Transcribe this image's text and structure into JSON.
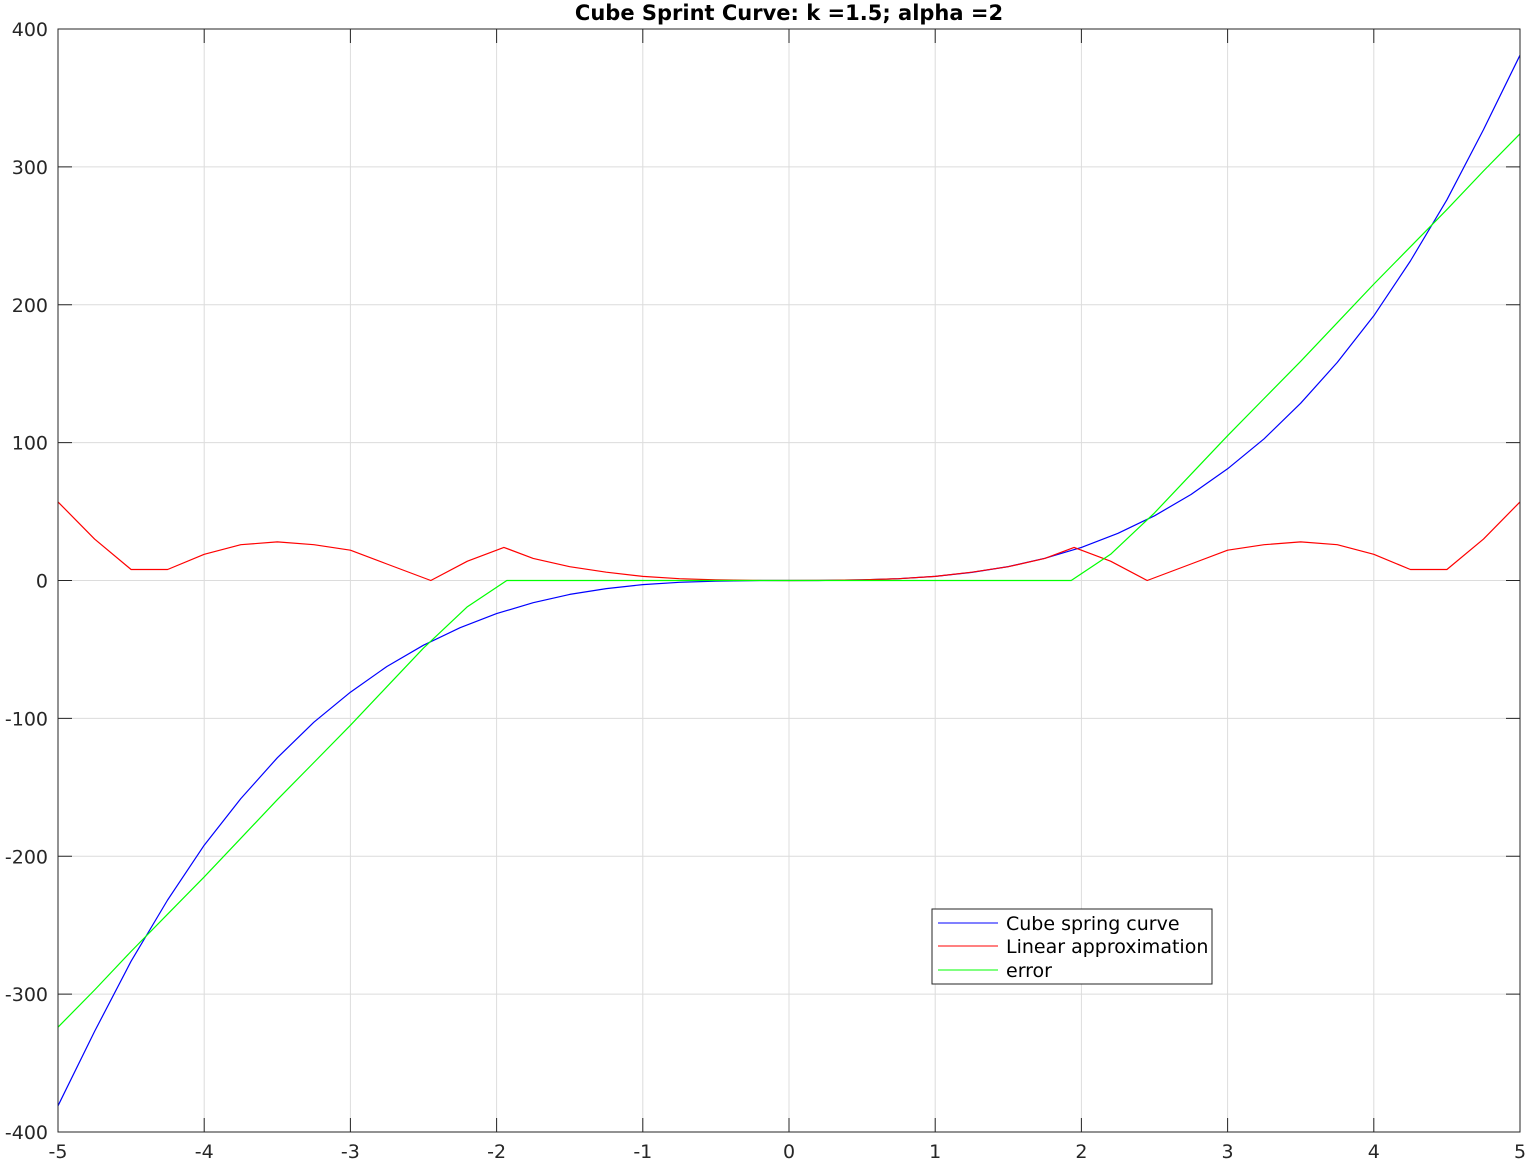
{
  "chart_data": {
    "type": "line",
    "title": "Cube Sprint Curve: k =1.5; alpha =2",
    "xlabel": "",
    "ylabel": "",
    "xlim": [
      -5,
      5
    ],
    "ylim": [
      -400,
      400
    ],
    "grid": true,
    "legend_position": "lower-right",
    "x_ticks": [
      -5,
      -4,
      -3,
      -2,
      -1,
      0,
      1,
      2,
      3,
      4,
      5
    ],
    "x_tick_labels": [
      "-5",
      "-4",
      "-3",
      "-2",
      "-1",
      "0",
      "1",
      "2",
      "3",
      "4",
      "5"
    ],
    "y_ticks": [
      -400,
      -300,
      -200,
      -100,
      0,
      100,
      200,
      300,
      400
    ],
    "y_tick_labels": [
      "-400",
      "-300",
      "-200",
      "-100",
      "0",
      "100",
      "200",
      "300",
      "400"
    ],
    "series": [
      {
        "name": "Cube spring curve",
        "color": "#0000ff",
        "x": [
          -5,
          -4.75,
          -4.5,
          -4.25,
          -4,
          -3.75,
          -3.5,
          -3.25,
          -3,
          -2.75,
          -2.5,
          -2.25,
          -2,
          -1.75,
          -1.5,
          -1.25,
          -1,
          -0.75,
          -0.5,
          -0.25,
          -0.2,
          0,
          0.2,
          0.25,
          0.5,
          0.75,
          1,
          1.25,
          1.5,
          1.75,
          2,
          2.25,
          2.5,
          2.75,
          3,
          3.25,
          3.5,
          3.75,
          4,
          4.25,
          4.5,
          4.75,
          5
        ],
        "y": [
          -381,
          -327,
          -276.1,
          -231.7,
          -192,
          -158.2,
          -128.6,
          -102.8,
          -81,
          -62.4,
          -46.9,
          -34.2,
          -24,
          -16.1,
          -10.1,
          -5.9,
          -3,
          -1.3,
          -0.4,
          -0.05,
          -0.02,
          0,
          0.02,
          0.05,
          0.4,
          1.3,
          3,
          5.9,
          10.1,
          16.1,
          24,
          34.2,
          46.9,
          62.4,
          81,
          102.8,
          128.6,
          158.2,
          192,
          231.7,
          276.1,
          327,
          381
        ]
      },
      {
        "name": "Linear approximation",
        "color": "#ff0000",
        "x": [
          -5,
          -4.75,
          -4.5,
          -4.25,
          -4,
          -3.75,
          -3.5,
          -3.25,
          -3,
          -2.75,
          -2.45,
          -2.2,
          -1.95,
          -1.75,
          -1.5,
          -1.25,
          -1,
          -0.75,
          -0.5,
          -0.25,
          0,
          0.25,
          0.5,
          0.75,
          1,
          1.25,
          1.5,
          1.75,
          1.95,
          2.2,
          2.45,
          2.75,
          3,
          3.25,
          3.5,
          3.75,
          4,
          4.25,
          4.5,
          4.75,
          5
        ],
        "y": [
          57,
          30,
          8,
          8,
          19,
          26,
          28,
          26,
          22,
          12,
          0,
          14,
          24,
          16,
          10,
          6,
          3,
          1.3,
          0.4,
          0.05,
          0,
          0.05,
          0.4,
          1.3,
          3,
          6,
          10,
          16,
          24,
          14,
          0,
          12,
          22,
          26,
          28,
          26,
          19,
          8,
          8,
          30,
          57
        ]
      },
      {
        "name": "error",
        "color": "#00ff00",
        "x": [
          -5,
          -4.75,
          -4.5,
          -4.25,
          -4,
          -3.75,
          -3.5,
          -3.25,
          -3,
          -2.75,
          -2.5,
          -2.2,
          -1.93,
          -1.5,
          -1,
          -0.5,
          0,
          0.5,
          1,
          1.5,
          1.93,
          2.2,
          2.5,
          2.75,
          3,
          3.25,
          3.5,
          3.75,
          4,
          4.25,
          4.5,
          4.75,
          5
        ],
        "y": [
          -324,
          -297,
          -269,
          -242,
          -215,
          -187,
          -159,
          -132,
          -105,
          -77,
          -49,
          -19,
          0,
          0,
          0,
          0,
          0,
          0,
          0,
          0,
          0,
          19,
          49,
          77,
          105,
          132,
          159,
          187,
          215,
          242,
          269,
          297,
          324
        ]
      }
    ]
  }
}
